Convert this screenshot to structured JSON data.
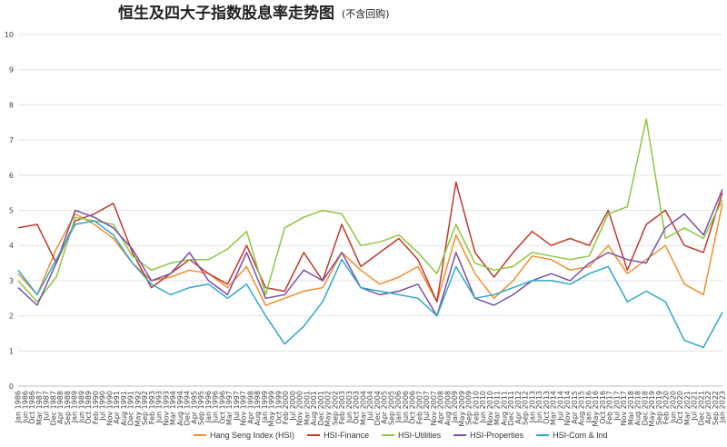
{
  "chart_data": {
    "type": "line",
    "title": "恒生及四大子指数股息率走势图",
    "subtitle": "(不含回购)",
    "xlabel": "",
    "ylabel": "",
    "ylim": [
      0,
      10
    ],
    "yticks": [
      "0",
      "1",
      "2",
      "3",
      "4",
      "5",
      "6",
      "7",
      "8",
      "9",
      "10"
    ],
    "grid": "horizontal",
    "legend_position": "bottom",
    "x_start": "Jan 1986",
    "x_end": "Jan 2023",
    "x_tick_labels": [
      "Jan 1986",
      "Jun 1986",
      "Oct 1986",
      "Mar 1987",
      "Jul 1987",
      "Dec 1987",
      "Apr 1988",
      "Sep 1988",
      "Jan 1989",
      "Jun 1989",
      "Oct 1989",
      "Feb 1990",
      "Jul 1990",
      "Nov 1990",
      "Apr 1991",
      "Aug 1991",
      "Dec 1991",
      "May 1992",
      "Sep 1992",
      "Feb 1993",
      "Jun 1993",
      "Nov 1993",
      "Mar 1994",
      "Aug 1994",
      "Dec 1994",
      "Apr 1995",
      "Sep 1995",
      "Jan 1996",
      "Jun 1996",
      "Oct 1996",
      "Mar 1997",
      "Jul 1997",
      "Nov 1997",
      "Apr 1998",
      "Aug 1998",
      "Jan 1999",
      "May 1999",
      "Oct 1999",
      "Feb 2000",
      "Jul 2000",
      "Nov 2000",
      "Mar 2001",
      "Aug 2001",
      "Dec 2001",
      "May 2002",
      "Sep 2002",
      "Feb 2003",
      "Jun 2003",
      "Oct 2003",
      "Mar 2004",
      "Jul 2004",
      "Dec 2004",
      "Apr 2005",
      "Sep 2005",
      "Jan 2006",
      "Jun 2006",
      "Oct 2006",
      "Feb 2007",
      "Jul 2007",
      "Nov 2007",
      "Apr 2008",
      "Aug 2008",
      "Jan 2009",
      "May 2009",
      "Sep 2009",
      "Feb 2010",
      "Jun 2010",
      "Nov 2010",
      "Mar 2011",
      "Aug 2011",
      "Dec 2011",
      "Apr 2012",
      "Sep 2012",
      "Jan 2013",
      "Jun 2013",
      "Oct 2013",
      "Mar 2014",
      "Jul 2014",
      "Nov 2014",
      "Apr 2015",
      "Aug 2015",
      "Jan 2016",
      "May 2016",
      "Oct 2016",
      "Feb 2017",
      "Jul 2017",
      "Nov 2017",
      "Mar 2018",
      "Aug 2018",
      "Dec 2018",
      "May 2019",
      "Sep 2019",
      "Feb 2020",
      "Jun 2020",
      "Oct 2020",
      "Mar 2021",
      "Jul 2021",
      "Dec 2021",
      "Apr 2022",
      "Sep 2022",
      "Jan 2023"
    ],
    "x_years": [
      1986,
      1987,
      1988,
      1989,
      1990,
      1991,
      1992,
      1993,
      1994,
      1995,
      1996,
      1997,
      1998,
      1999,
      2000,
      2001,
      2002,
      2003,
      2004,
      2005,
      2006,
      2007,
      2008,
      2009,
      2010,
      2011,
      2012,
      2013,
      2014,
      2015,
      2016,
      2017,
      2018,
      2019,
      2020,
      2021,
      2022,
      2023
    ],
    "series": [
      {
        "name": "Hang Seng Index (HSI)",
        "color": "#F28E2B",
        "values": [
          3.2,
          2.6,
          3.9,
          4.9,
          4.6,
          4.2,
          3.5,
          3.0,
          3.1,
          3.3,
          3.2,
          2.8,
          3.4,
          2.3,
          2.5,
          2.7,
          2.8,
          3.8,
          3.3,
          2.9,
          3.1,
          3.4,
          2.4,
          4.3,
          3.2,
          2.5,
          3.0,
          3.7,
          3.6,
          3.3,
          3.4,
          4.0,
          3.2,
          3.6,
          4.0,
          2.9,
          2.6,
          5.2
        ]
      },
      {
        "name": "HSI-Finance",
        "color": "#C0392B",
        "values": [
          4.5,
          4.6,
          3.5,
          4.7,
          4.9,
          5.2,
          3.8,
          2.8,
          3.2,
          3.6,
          3.2,
          2.9,
          4.0,
          2.8,
          2.7,
          3.8,
          3.0,
          4.6,
          3.4,
          3.8,
          4.2,
          3.6,
          2.4,
          5.8,
          3.8,
          3.1,
          3.8,
          4.4,
          4.0,
          4.2,
          4.0,
          5.0,
          3.3,
          4.6,
          5.0,
          4.0,
          3.8,
          5.5
        ]
      },
      {
        "name": "HSI-Utilities",
        "color": "#8DC63F",
        "values": [
          3.0,
          2.4,
          3.1,
          4.8,
          4.7,
          4.6,
          3.7,
          3.3,
          3.5,
          3.6,
          3.6,
          3.9,
          4.4,
          2.6,
          4.5,
          4.8,
          5.0,
          4.9,
          4.0,
          4.1,
          4.3,
          3.8,
          3.2,
          4.6,
          3.5,
          3.3,
          3.4,
          3.8,
          3.7,
          3.6,
          3.7,
          4.9,
          5.1,
          7.6,
          4.2,
          4.5,
          4.2,
          5.3
        ]
      },
      {
        "name": "HSI-Properties",
        "color": "#7B4FA8",
        "values": [
          2.8,
          2.3,
          3.5,
          5.0,
          4.8,
          4.5,
          3.9,
          3.0,
          3.2,
          3.8,
          3.0,
          2.6,
          3.8,
          2.5,
          2.6,
          3.3,
          3.0,
          3.8,
          2.8,
          2.6,
          2.7,
          2.9,
          2.0,
          3.8,
          2.5,
          2.3,
          2.6,
          3.0,
          3.2,
          3.0,
          3.5,
          3.8,
          3.6,
          3.5,
          4.5,
          4.9,
          4.3,
          5.6
        ]
      },
      {
        "name": "HSI-Com & Ind",
        "color": "#2EA7C7",
        "values": [
          3.3,
          2.6,
          3.6,
          4.6,
          4.7,
          4.3,
          3.5,
          2.9,
          2.6,
          2.8,
          2.9,
          2.5,
          2.9,
          2.0,
          1.2,
          1.7,
          2.4,
          3.6,
          2.8,
          2.7,
          2.6,
          2.5,
          2.0,
          3.4,
          2.5,
          2.6,
          2.8,
          3.0,
          3.0,
          2.9,
          3.2,
          3.4,
          2.4,
          2.7,
          2.4,
          1.3,
          1.1,
          2.1
        ]
      }
    ]
  }
}
